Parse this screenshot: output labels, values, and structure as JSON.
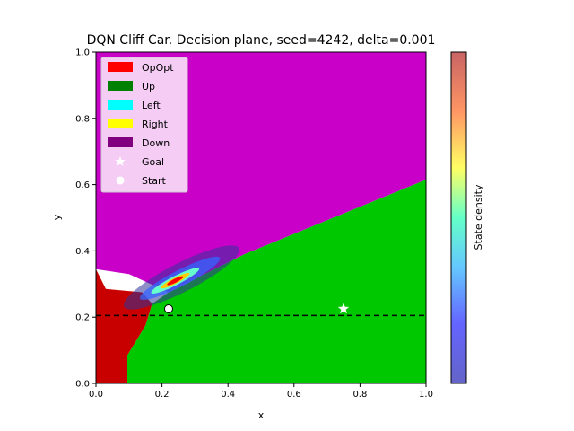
{
  "chart_data": {
    "type": "heatmap",
    "title": "DQN Cliff Car. Decision plane, seed=4242, delta=0.001",
    "xlabel": "x",
    "ylabel": "y",
    "xlim": [
      0.0,
      1.0
    ],
    "ylim": [
      0.0,
      1.0
    ],
    "x_ticks": [
      "0.0",
      "0.2",
      "0.4",
      "0.6",
      "0.8",
      "1.0"
    ],
    "y_ticks": [
      "0.0",
      "0.2",
      "0.4",
      "0.6",
      "0.8",
      "1.0"
    ],
    "colorbar_label": "State density",
    "legend_position": "upper-left",
    "legend": [
      {
        "label": "OpOpt",
        "kind": "patch",
        "color": "#ff0000"
      },
      {
        "label": "Up",
        "kind": "patch",
        "color": "#008000"
      },
      {
        "label": "Left",
        "kind": "patch",
        "color": "#00ffff"
      },
      {
        "label": "Right",
        "kind": "patch",
        "color": "#ffff00"
      },
      {
        "label": "Down",
        "kind": "patch",
        "color": "#800080"
      },
      {
        "label": "Goal",
        "kind": "star",
        "color": "#ffffff"
      },
      {
        "label": "Start",
        "kind": "circle",
        "color": "#ffffff"
      }
    ],
    "regions": [
      {
        "action": "Down",
        "color": "#c800c8",
        "polygon": [
          [
            0,
            1
          ],
          [
            1,
            1
          ],
          [
            1,
            0.615
          ],
          [
            0.45,
            0.39
          ],
          [
            0.33,
            0.33
          ],
          [
            0.22,
            0.275
          ],
          [
            0.1,
            0.33
          ],
          [
            0,
            0.345
          ]
        ]
      },
      {
        "action": "Up",
        "color": "#00c800",
        "polygon": [
          [
            0.095,
            0
          ],
          [
            1,
            0
          ],
          [
            1,
            0.615
          ],
          [
            0.45,
            0.39
          ],
          [
            0.33,
            0.33
          ],
          [
            0.22,
            0.275
          ],
          [
            0.17,
            0.24
          ],
          [
            0.15,
            0.175
          ],
          [
            0.095,
            0.085
          ]
        ]
      },
      {
        "action": "OpOpt",
        "color": "#c80000",
        "polygon": [
          [
            0,
            0
          ],
          [
            0.095,
            0
          ],
          [
            0.095,
            0.085
          ],
          [
            0.15,
            0.175
          ],
          [
            0.17,
            0.24
          ],
          [
            0.14,
            0.275
          ],
          [
            0.03,
            0.285
          ],
          [
            0,
            0.345
          ]
        ]
      }
    ],
    "goal": {
      "x": 0.75,
      "y": 0.225
    },
    "start": {
      "x": 0.22,
      "y": 0.225
    },
    "cliff_line_y": 0.205,
    "density_peak": {
      "x": 0.24,
      "y": 0.31
    }
  }
}
